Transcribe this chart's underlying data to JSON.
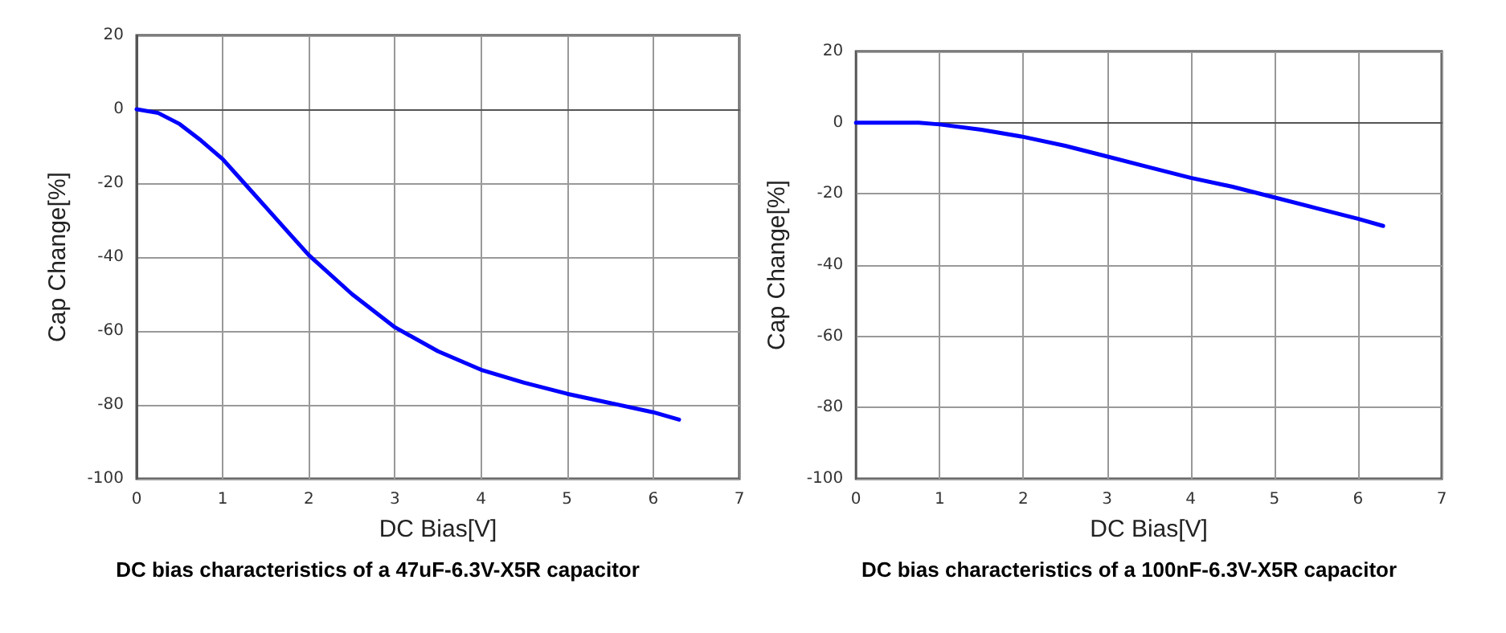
{
  "chart_data": [
    {
      "type": "line",
      "title": "DC bias characteristics of a 47uF-6.3V-X5R capacitor",
      "xlabel": "DC Bias[V]",
      "ylabel": "Cap Change[%]",
      "x": [
        0,
        0.25,
        0.5,
        0.75,
        1,
        1.25,
        1.5,
        1.75,
        2,
        2.5,
        3,
        3.5,
        4,
        4.5,
        5,
        5.5,
        6,
        6.3
      ],
      "series": [
        {
          "color": "#0000ff",
          "values": [
            0,
            -1,
            -4,
            -8.5,
            -13.5,
            -20,
            -26.5,
            -33,
            -39.5,
            -50,
            -59,
            -65.5,
            -70.5,
            -74,
            -77,
            -79.5,
            -82,
            -84
          ]
        }
      ],
      "xlim": [
        0,
        7
      ],
      "xticks": [
        0,
        1,
        2,
        3,
        4,
        5,
        6,
        7
      ],
      "ylim": [
        -100,
        20
      ],
      "yticks": [
        -100,
        -80,
        -60,
        -40,
        -20,
        0,
        20
      ],
      "grid": true,
      "marker": "none",
      "line_style": "solid"
    },
    {
      "type": "line",
      "title": "DC bias characteristics of a 100nF-6.3V-X5R capacitor",
      "xlabel": "DC Bias[V]",
      "ylabel": "Cap Change[%]",
      "x": [
        0,
        0.25,
        0.5,
        0.75,
        1,
        1.5,
        2,
        2.5,
        3,
        3.5,
        4,
        4.5,
        5,
        5.5,
        6,
        6.3
      ],
      "series": [
        {
          "color": "#0000ff",
          "values": [
            0,
            0,
            0,
            0,
            -0.5,
            -2,
            -4,
            -6.5,
            -9.5,
            -12.5,
            -15.5,
            -18,
            -21,
            -24,
            -27,
            -29
          ]
        }
      ],
      "xlim": [
        0,
        7
      ],
      "xticks": [
        0,
        1,
        2,
        3,
        4,
        5,
        6,
        7
      ],
      "ylim": [
        -100,
        20
      ],
      "yticks": [
        -100,
        -80,
        -60,
        -40,
        -20,
        0,
        20
      ],
      "grid": true,
      "marker": "none",
      "line_style": "solid"
    }
  ]
}
